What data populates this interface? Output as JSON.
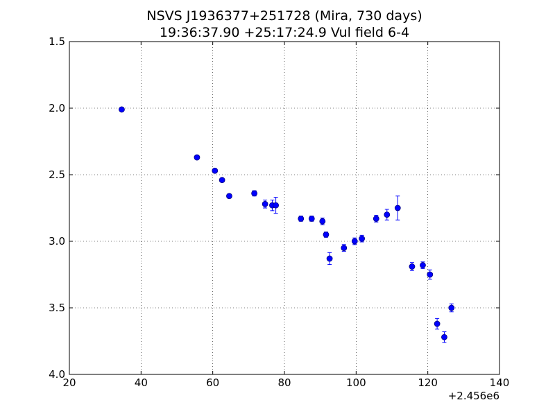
{
  "chart_data": {
    "type": "scatter",
    "title": "NSVS J1936377+251728 (Mira, 730 days)",
    "subtitle": "19:36:37.90 +25:17:24.9 Vul field 6-4",
    "xlabel": "",
    "ylabel": "",
    "x_offset_label": "+2.456e6",
    "x_offset": 2456000,
    "xlim": [
      20,
      140
    ],
    "ylim": [
      1.5,
      4.0
    ],
    "y_inverted": true,
    "xticks": [
      20,
      40,
      60,
      80,
      100,
      120,
      140
    ],
    "xtick_labels": [
      "20",
      "40",
      "60",
      "80",
      "100",
      "120",
      "140"
    ],
    "yticks": [
      1.5,
      2.0,
      2.5,
      3.0,
      3.5,
      4.0
    ],
    "ytick_labels": [
      "1.5",
      "2.0",
      "2.5",
      "3.0",
      "3.5",
      "4.0"
    ],
    "grid": true,
    "marker_color": "#0000ff",
    "marker_edge_color": "#00007f",
    "series": [
      {
        "x": [
          34.6,
          55.6,
          60.6,
          62.6,
          64.6,
          71.6,
          74.6,
          76.6,
          77.6,
          84.6,
          87.6,
          90.6,
          91.6,
          92.6,
          96.6,
          99.6,
          101.6,
          105.6,
          108.6,
          111.6,
          115.6,
          118.6,
          120.6,
          122.6,
          124.6,
          126.6
        ],
        "y": [
          2.01,
          2.37,
          2.47,
          2.54,
          2.66,
          2.64,
          2.72,
          2.73,
          2.73,
          2.83,
          2.83,
          2.85,
          2.95,
          3.13,
          3.05,
          3.0,
          2.98,
          2.83,
          2.8,
          2.75,
          3.19,
          3.18,
          3.25,
          3.62,
          3.72,
          3.5
        ],
        "yerr": [
          0.01,
          0.015,
          0.015,
          0.015,
          0.015,
          0.02,
          0.03,
          0.04,
          0.06,
          0.02,
          0.02,
          0.025,
          0.02,
          0.045,
          0.025,
          0.025,
          0.025,
          0.025,
          0.04,
          0.09,
          0.03,
          0.025,
          0.035,
          0.04,
          0.04,
          0.03
        ]
      }
    ]
  }
}
